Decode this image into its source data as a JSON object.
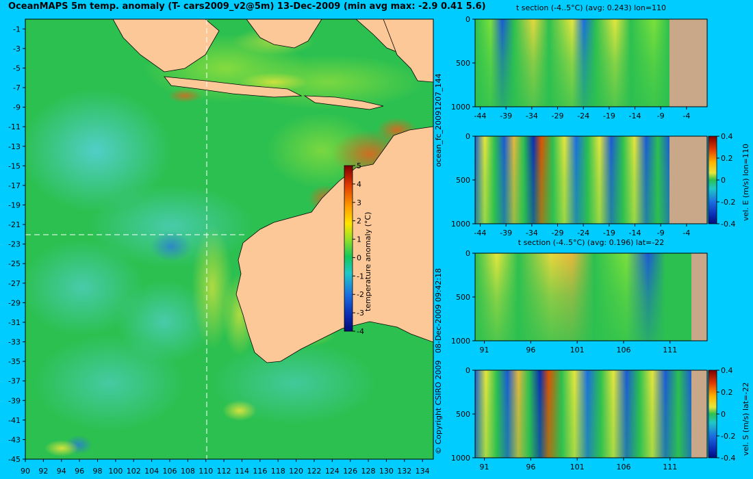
{
  "header": {
    "title": "OceanMAPS 5m temp. anomaly (T- cars2009_v2@5m) 13-Dec-2009 (min avg max: -2.9 0.41 5.6)"
  },
  "side_text": {
    "forecast_id": "ocean_fc_20091207_144",
    "run_time": "08-Dec-2009 09:42:18",
    "copyright": "© Copyright CSIRO 2009"
  },
  "chart_data": [
    {
      "type": "heatmap",
      "name": "map",
      "title": "OceanMAPS 5m temp. anomaly (T- cars2009_v2@5m) 13-Dec-2009 (min avg max: -2.9 0.41 5.6)",
      "x_ticks": [
        "90",
        "92",
        "94",
        "96",
        "98",
        "100",
        "102",
        "104",
        "106",
        "108",
        "110",
        "112",
        "114",
        "116",
        "118",
        "120",
        "122",
        "124",
        "126",
        "128",
        "130",
        "132",
        "134"
      ],
      "y_ticks": [
        "-1",
        "-3",
        "-5",
        "-7",
        "-9",
        "-11",
        "-13",
        "-15",
        "-17",
        "-19",
        "-21",
        "-23",
        "-25",
        "-27",
        "-29",
        "-31",
        "-33",
        "-35",
        "-37",
        "-39",
        "-41",
        "-43",
        "-45"
      ],
      "xlim": [
        90,
        135.2
      ],
      "ylim": [
        -45,
        0
      ],
      "section_lines": {
        "lon": 110,
        "lat": -22
      },
      "stats": {
        "min": -2.9,
        "avg": 0.41,
        "max": 5.6
      },
      "colorbar": {
        "label": "temperature anomaly (°C)",
        "ticks": [
          "5",
          "4",
          "3",
          "2",
          "1",
          "0",
          "-1",
          "-2",
          "-3",
          "-4"
        ],
        "range": [
          -4,
          5
        ]
      }
    },
    {
      "type": "heatmap",
      "name": "t-section-lon",
      "title": "t section (-4..5°C) (avg: 0.243) lon=110",
      "x_ticks": [
        "-44",
        "-39",
        "-34",
        "-29",
        "-24",
        "-19",
        "-14",
        "-9",
        "-4"
      ],
      "y_ticks": [
        "0",
        "500",
        "1000"
      ],
      "xlim": [
        -45,
        0
      ],
      "ylim": [
        1000,
        0
      ]
    },
    {
      "type": "heatmap",
      "name": "vel-e-section",
      "title": "",
      "x_ticks": [
        "-44",
        "-39",
        "-34",
        "-29",
        "-24",
        "-19",
        "-14",
        "-9",
        "-4"
      ],
      "y_ticks": [
        "0",
        "500",
        "1000"
      ],
      "xlim": [
        -45,
        0
      ],
      "ylim": [
        1000,
        0
      ],
      "colorbar": {
        "label": "vel. E (m/s) lon=110",
        "ticks": [
          "0.4",
          "0.2",
          "0",
          "-0.2",
          "-0.4"
        ],
        "range": [
          -0.4,
          0.4
        ]
      }
    },
    {
      "type": "heatmap",
      "name": "t-section-lat",
      "title": "t section (-4..5°C) (avg: 0.196) lat=-22",
      "x_ticks": [
        "91",
        "96",
        "101",
        "106",
        "111"
      ],
      "y_ticks": [
        "0",
        "500",
        "1000"
      ],
      "xlim": [
        90,
        115
      ],
      "ylim": [
        1000,
        0
      ]
    },
    {
      "type": "heatmap",
      "name": "vel-s-section",
      "title": "",
      "x_ticks": [
        "91",
        "96",
        "101",
        "106",
        "111"
      ],
      "y_ticks": [
        "0",
        "500",
        "1000"
      ],
      "xlim": [
        90,
        115
      ],
      "ylim": [
        1000,
        0
      ],
      "colorbar": {
        "label": "vel. S (m/s) lat=-22",
        "ticks": [
          "0.4",
          "0.2",
          "0",
          "-0.2",
          "-0.4"
        ],
        "range": [
          -0.4,
          0.4
        ]
      }
    }
  ]
}
